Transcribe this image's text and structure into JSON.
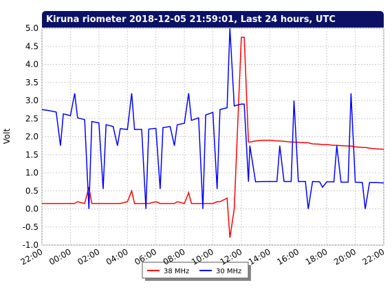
{
  "chart_data": {
    "type": "line",
    "title": "Kiruna riometer 2018-12-05 21:59:01, Last 24 hours, UTC",
    "y_label": "Volt",
    "x": [
      0,
      0.5,
      1,
      1.3,
      1.5,
      2,
      2.3,
      2.5,
      3,
      3.3,
      3.5,
      4,
      4.3,
      4.5,
      5,
      5.3,
      5.5,
      6,
      6.3,
      6.5,
      7,
      7.3,
      7.5,
      8,
      8.3,
      8.5,
      9,
      9.3,
      9.5,
      10,
      10.3,
      10.5,
      11,
      11.3,
      11.5,
      12,
      12.3,
      12.5,
      13,
      13.2,
      13.5,
      14,
      14.2,
      14.5,
      14.6,
      15,
      15.5,
      16,
      16.5,
      16.7,
      17,
      17.5,
      17.7,
      18,
      18.5,
      18.7,
      19,
      19.5,
      19.7,
      20,
      20.5,
      20.7,
      21,
      21.5,
      21.7,
      22,
      22.5,
      22.7,
      23,
      23.5,
      24
    ],
    "series": [
      {
        "name": "38 MHz",
        "color": "#ff0000",
        "values": [
          0.15,
          0.15,
          0.15,
          0.15,
          0.15,
          0.15,
          0.15,
          0.2,
          0.15,
          0.6,
          0.15,
          0.15,
          0.15,
          0.15,
          0.15,
          0.15,
          0.15,
          0.2,
          0.5,
          0.15,
          0.15,
          0.15,
          0.15,
          0.2,
          0.15,
          0.15,
          0.15,
          0.15,
          0.2,
          0.15,
          0.45,
          0.15,
          0.15,
          0.15,
          0.15,
          0.15,
          0.2,
          0.2,
          0.3,
          -0.8,
          0.0,
          4.75,
          4.75,
          1.85,
          1.85,
          1.88,
          1.9,
          1.9,
          1.88,
          1.88,
          1.87,
          1.85,
          1.85,
          1.84,
          1.83,
          1.83,
          1.8,
          1.79,
          1.78,
          1.78,
          1.76,
          1.76,
          1.75,
          1.74,
          1.74,
          1.72,
          1.7,
          1.7,
          1.68,
          1.66,
          1.65
        ]
      },
      {
        "name": "30 MHz",
        "color": "#0000ff",
        "values": [
          2.75,
          2.72,
          2.68,
          1.75,
          2.63,
          2.58,
          3.2,
          2.52,
          2.47,
          0.0,
          2.42,
          2.38,
          0.55,
          2.33,
          2.28,
          1.75,
          2.22,
          2.2,
          3.2,
          2.2,
          2.2,
          0.0,
          2.21,
          2.23,
          0.55,
          2.25,
          2.28,
          1.75,
          2.33,
          2.37,
          3.2,
          2.45,
          2.52,
          0.0,
          2.6,
          2.67,
          0.55,
          2.75,
          2.8,
          5.0,
          2.85,
          2.9,
          2.9,
          0.75,
          1.75,
          0.75,
          0.76,
          0.76,
          0.76,
          1.75,
          0.76,
          0.76,
          3.0,
          0.76,
          0.76,
          0.0,
          0.76,
          0.75,
          0.6,
          0.75,
          0.75,
          1.75,
          0.74,
          0.74,
          3.2,
          0.74,
          0.73,
          0.0,
          0.73,
          0.73,
          0.72
        ]
      }
    ],
    "xlim": [
      0,
      24
    ],
    "xticks": [
      {
        "value": 0,
        "label": "22:00"
      },
      {
        "value": 2,
        "label": "00:00"
      },
      {
        "value": 4,
        "label": "02:00"
      },
      {
        "value": 6,
        "label": "04:00"
      },
      {
        "value": 8,
        "label": "06:00"
      },
      {
        "value": 10,
        "label": "08:00"
      },
      {
        "value": 12,
        "label": "10:00"
      },
      {
        "value": 14,
        "label": "12:00"
      },
      {
        "value": 16,
        "label": "14:00"
      },
      {
        "value": 18,
        "label": "16:00"
      },
      {
        "value": 20,
        "label": "18:00"
      },
      {
        "value": 22,
        "label": "20:00"
      },
      {
        "value": 24,
        "label": "22:00"
      }
    ],
    "ylim": [
      -1.0,
      5.0
    ],
    "yticks": [
      {
        "value": 5,
        "label": "5.0"
      },
      {
        "value": 4.5,
        "label": "4.5"
      },
      {
        "value": 4,
        "label": "4.0"
      },
      {
        "value": 3.5,
        "label": "3.5"
      },
      {
        "value": 3,
        "label": "3.0"
      },
      {
        "value": 2.5,
        "label": "2.5"
      },
      {
        "value": 2,
        "label": "2.0"
      },
      {
        "value": 1.5,
        "label": "1.5"
      },
      {
        "value": 1,
        "label": "1.0"
      },
      {
        "value": 0.5,
        "label": "0.5"
      },
      {
        "value": 0,
        "label": "0.0"
      },
      {
        "value": -0.5,
        "label": "-0.5"
      },
      {
        "value": -1,
        "label": "-1.0"
      }
    ],
    "grid": true
  }
}
